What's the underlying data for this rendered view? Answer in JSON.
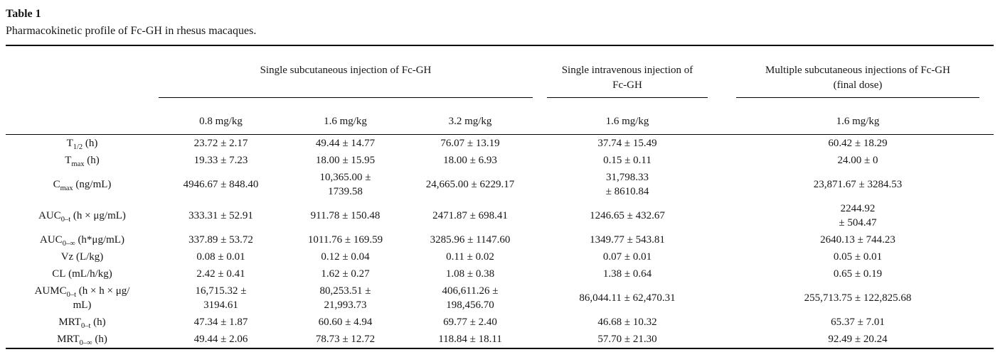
{
  "caption": {
    "label": "Table 1",
    "description": "Pharmacokinetic profile of Fc-GH in rhesus macaques."
  },
  "table": {
    "groups": [
      {
        "label": "Single subcutaneous injection of Fc-GH",
        "doses": [
          "0.8 mg/kg",
          "1.6 mg/kg",
          "3.2 mg/kg"
        ]
      },
      {
        "label": "Single intravenous injection of\nFc-GH",
        "doses": [
          "1.6 mg/kg"
        ]
      },
      {
        "label": "Multiple subcutaneous injections of Fc-GH\n(final dose)",
        "doses": [
          "1.6 mg/kg"
        ]
      }
    ],
    "rows": [
      {
        "param": {
          "base": "T",
          "sub": "1/2",
          "unit": " (h)"
        },
        "values": [
          "23.72 ± 2.17",
          "49.44 ± 14.77",
          "76.07 ± 13.19",
          "37.74 ± 15.49",
          "60.42 ± 18.29"
        ]
      },
      {
        "param": {
          "base": "T",
          "sub": "max",
          "unit": " (h)"
        },
        "values": [
          "19.33 ± 7.23",
          "18.00 ± 15.95",
          "18.00 ± 6.93",
          "0.15 ± 0.11",
          "24.00 ± 0"
        ]
      },
      {
        "param": {
          "base": "C",
          "sub": "max",
          "unit": " (ng/mL)"
        },
        "values": [
          "4946.67 ± 848.40",
          "10,365.00 ±\n1739.58",
          "24,665.00 ± 6229.17",
          "31,798.33\n± 8610.84",
          "23,871.67 ± 3284.53"
        ]
      },
      {
        "param": {
          "base": "AUC",
          "sub": "0–t",
          "unit": " (h × μg/mL)"
        },
        "values": [
          "333.31 ± 52.91",
          "911.78 ± 150.48",
          "2471.87 ± 698.41",
          "1246.65 ± 432.67",
          "2244.92\n± 504.47"
        ]
      },
      {
        "param": {
          "base": "AUC",
          "sub": "0–∞",
          "unit": " (h*μg/mL)"
        },
        "values": [
          "337.89 ± 53.72",
          "1011.76 ± 169.59",
          "3285.96 ± 1147.60",
          "1349.77 ± 543.81",
          "2640.13 ± 744.23"
        ]
      },
      {
        "param": {
          "base": "Vz",
          "sub": "",
          "unit": " (L/kg)"
        },
        "values": [
          "0.08 ± 0.01",
          "0.12 ± 0.04",
          "0.11 ± 0.02",
          "0.07 ± 0.01",
          "0.05 ± 0.01"
        ]
      },
      {
        "param": {
          "base": "CL",
          "sub": "",
          "unit": " (mL/h/kg)"
        },
        "values": [
          "2.42 ± 0.41",
          "1.62 ± 0.27",
          "1.08 ± 0.38",
          "1.38 ± 0.64",
          "0.65 ± 0.19"
        ]
      },
      {
        "param": {
          "base": "AUMC",
          "sub": "0–t",
          "unit": " (h × h × μg/\nmL)"
        },
        "values": [
          "16,715.32 ±\n3194.61",
          "80,253.51 ±\n21,993.73",
          "406,611.26 ±\n198,456.70",
          "86,044.11 ± 62,470.31",
          "255,713.75 ± 122,825.68"
        ]
      },
      {
        "param": {
          "base": "MRT",
          "sub": "0–t",
          "unit": " (h)"
        },
        "values": [
          "47.34 ± 1.87",
          "60.60 ± 4.94",
          "69.77 ± 2.40",
          "46.68 ± 10.32",
          "65.37 ± 7.01"
        ]
      },
      {
        "param": {
          "base": "MRT",
          "sub": "0–∞",
          "unit": " (h)"
        },
        "values": [
          "49.44 ± 2.06",
          "78.73 ± 12.72",
          "118.84 ± 18.11",
          "57.70 ± 21.30",
          "92.49 ± 20.24"
        ]
      }
    ]
  }
}
